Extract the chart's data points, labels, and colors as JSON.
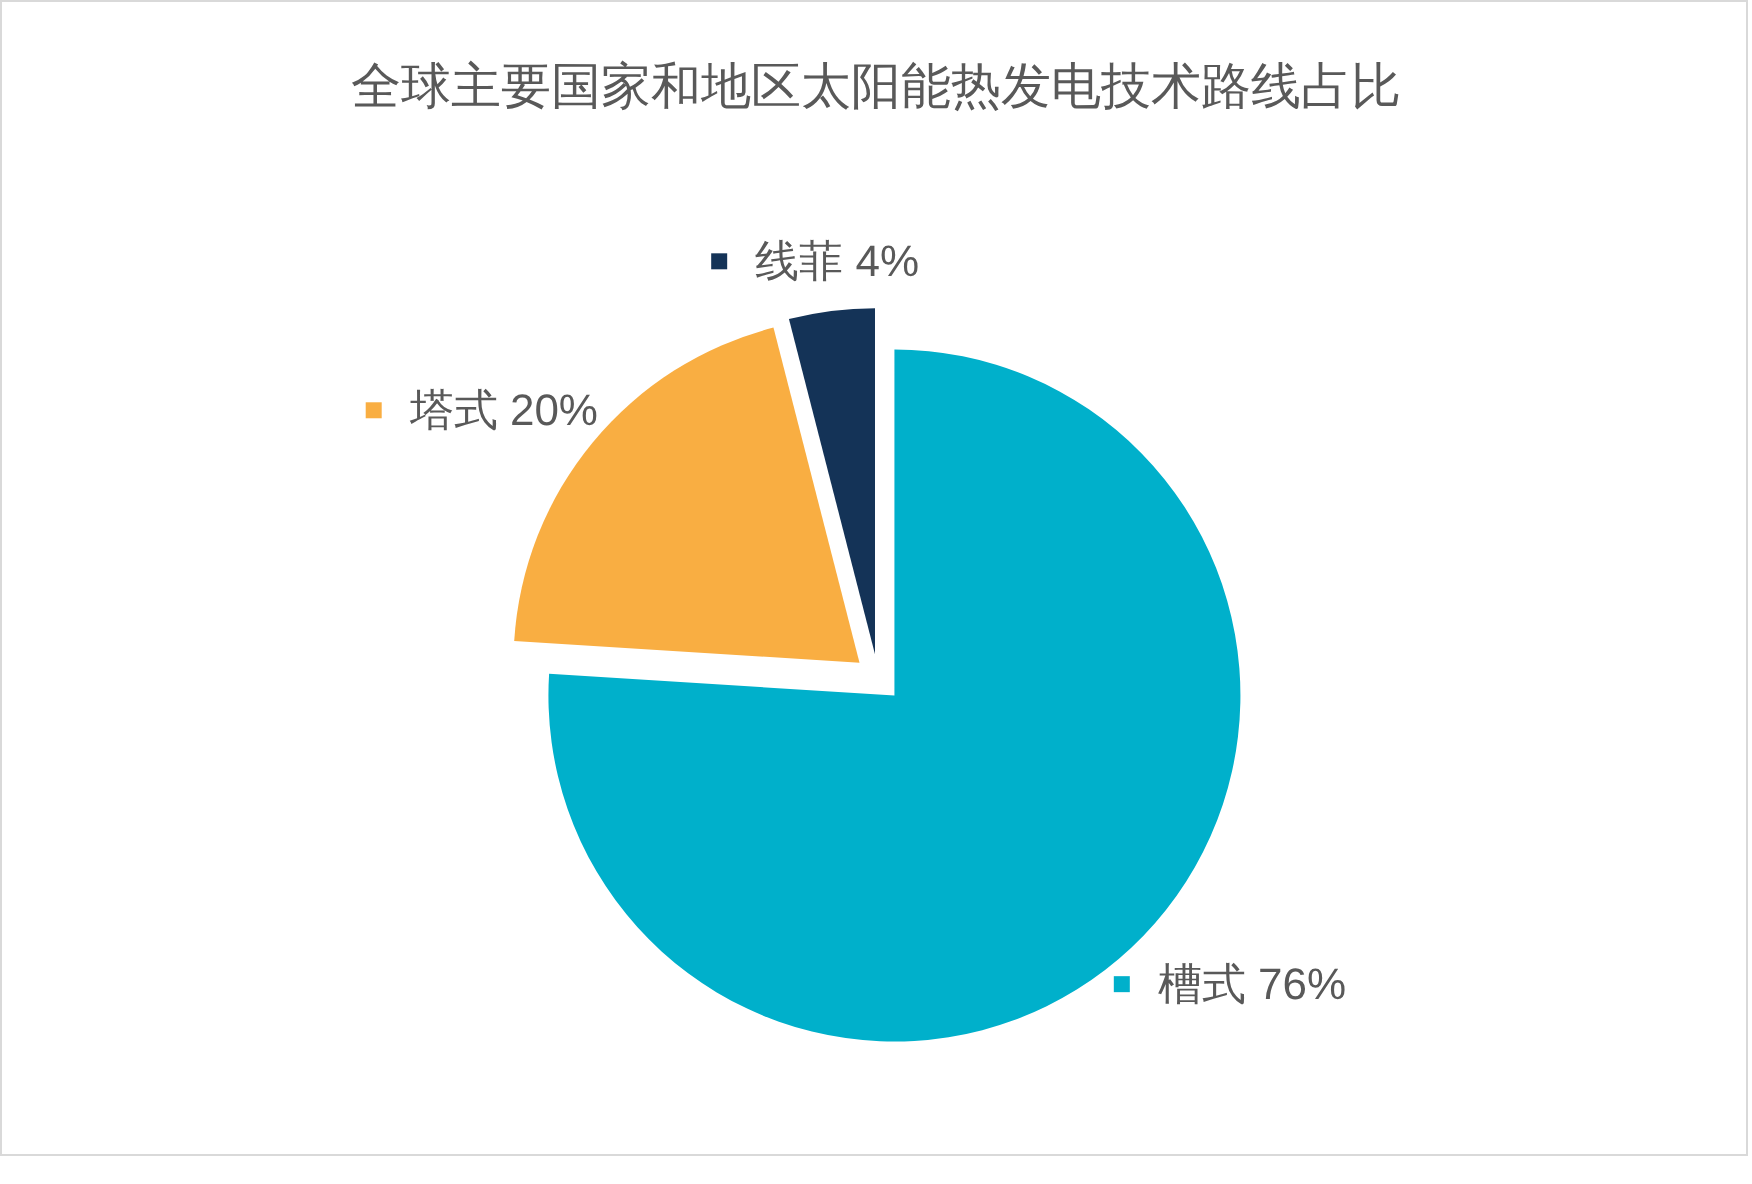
{
  "chart_data": {
    "type": "pie",
    "title": "全球主要国家和地区太阳能热发电技术路线占比",
    "categories": [
      "槽式",
      "塔式",
      "线菲"
    ],
    "values": [
      76,
      20,
      4
    ],
    "colors": [
      "#00b0cb",
      "#f9ae42",
      "#143357"
    ],
    "value_labels": [
      "76%",
      "20%",
      "4%"
    ],
    "legend": "center"
  }
}
